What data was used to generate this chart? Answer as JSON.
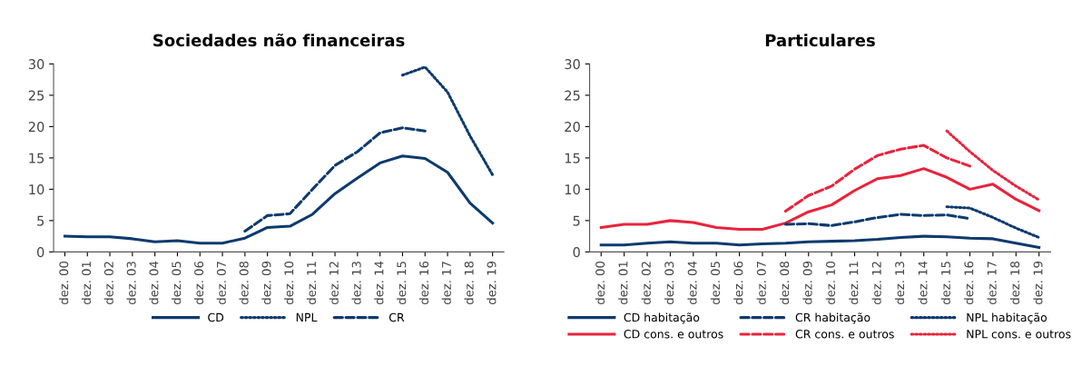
{
  "chart_data": [
    {
      "type": "line",
      "title": "Sociedades não financeiras",
      "categories": [
        "dez. 00",
        "dez. 01",
        "dez. 02",
        "dez. 03",
        "dez. 04",
        "dez. 05",
        "dez. 06",
        "dez. 07",
        "dez. 08",
        "dez. 09",
        "dez. 10",
        "dez. 11",
        "dez. 12",
        "dez. 13",
        "dez. 14",
        "dez. 15",
        "dez. 16",
        "dez. 17",
        "dez. 18",
        "dez. 19"
      ],
      "ylim": [
        0,
        30
      ],
      "yticks": [
        0,
        5,
        10,
        15,
        20,
        25,
        30
      ],
      "grid": false,
      "legend": "bottom",
      "marker": "none",
      "series": [
        {
          "name": "CD",
          "color": "#0d3a6e",
          "line_style": "solid",
          "values": [
            2.5,
            2.4,
            2.4,
            2.1,
            1.6,
            1.8,
            1.4,
            1.4,
            2.2,
            3.9,
            4.1,
            6.0,
            9.3,
            11.8,
            14.2,
            15.3,
            14.9,
            12.7,
            7.8,
            4.6
          ]
        },
        {
          "name": "NPL",
          "color": "#0d3a6e",
          "line_style": "dotted",
          "values": [
            null,
            null,
            null,
            null,
            null,
            null,
            null,
            null,
            null,
            null,
            null,
            null,
            null,
            null,
            null,
            28.2,
            29.5,
            25.5,
            18.5,
            12.3
          ]
        },
        {
          "name": "CR",
          "color": "#0d3a6e",
          "line_style": "dashed",
          "values": [
            null,
            null,
            null,
            null,
            null,
            null,
            null,
            null,
            3.3,
            5.8,
            6.1,
            10.0,
            13.8,
            16.0,
            19.0,
            19.8,
            19.3,
            null,
            null,
            null
          ]
        }
      ]
    },
    {
      "type": "line",
      "title": "Particulares",
      "categories": [
        "dez. 00",
        "dez. 01",
        "dez. 02",
        "dez. 03",
        "dez. 04",
        "dez. 05",
        "dez. 06",
        "dez. 07",
        "dez. 08",
        "dez. 09",
        "dez. 10",
        "dez. 11",
        "dez. 12",
        "dez. 13",
        "dez. 14",
        "dez. 15",
        "dez. 16",
        "dez. 17",
        "dez. 18",
        "dez. 19"
      ],
      "ylim": [
        0,
        30
      ],
      "yticks": [
        0,
        5,
        10,
        15,
        20,
        25,
        30
      ],
      "grid": false,
      "legend": "bottom",
      "marker": "none",
      "series": [
        {
          "name": "CD habitação",
          "color": "#0d3a6e",
          "line_style": "solid",
          "values": [
            1.1,
            1.1,
            1.4,
            1.6,
            1.4,
            1.4,
            1.1,
            1.3,
            1.4,
            1.6,
            1.7,
            1.8,
            2.0,
            2.3,
            2.5,
            2.4,
            2.2,
            2.1,
            1.4,
            0.7
          ]
        },
        {
          "name": "CD cons. e outros",
          "color": "#e8243c",
          "line_style": "solid",
          "values": [
            3.9,
            4.4,
            4.4,
            5.0,
            4.7,
            3.9,
            3.6,
            3.6,
            4.6,
            6.4,
            7.5,
            9.8,
            11.7,
            12.2,
            13.3,
            11.9,
            10.0,
            10.8,
            8.4,
            6.6
          ]
        },
        {
          "name": "CR habitação",
          "color": "#0d3a6e",
          "line_style": "dashed",
          "values": [
            null,
            null,
            null,
            null,
            null,
            null,
            null,
            null,
            4.4,
            4.5,
            4.2,
            4.8,
            5.5,
            6.0,
            5.8,
            5.9,
            5.3,
            null,
            null,
            null
          ]
        },
        {
          "name": "CR cons. e outros",
          "color": "#e8243c",
          "line_style": "dashed",
          "values": [
            null,
            null,
            null,
            null,
            null,
            null,
            null,
            null,
            6.5,
            9.0,
            10.5,
            13.2,
            15.4,
            16.4,
            17.0,
            15.0,
            13.7,
            null,
            null,
            null
          ]
        },
        {
          "name": "NPL habitação",
          "color": "#0d3a6e",
          "line_style": "dotted",
          "values": [
            null,
            null,
            null,
            null,
            null,
            null,
            null,
            null,
            null,
            null,
            null,
            null,
            null,
            null,
            null,
            7.2,
            7.0,
            5.5,
            3.8,
            2.3
          ]
        },
        {
          "name": "NPL cons. e outros",
          "color": "#e8243c",
          "line_style": "dotted",
          "values": [
            null,
            null,
            null,
            null,
            null,
            null,
            null,
            null,
            null,
            null,
            null,
            null,
            null,
            null,
            null,
            19.3,
            16.0,
            13.0,
            10.5,
            8.3
          ]
        }
      ]
    }
  ]
}
